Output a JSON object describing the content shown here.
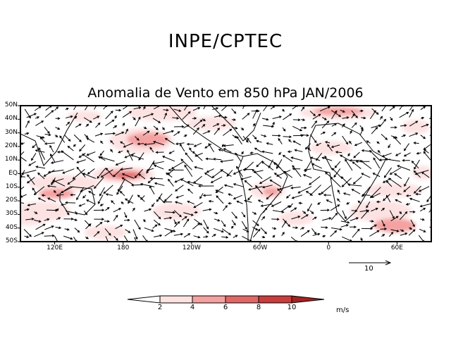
{
  "header": {
    "title": "INPE/CPTEC",
    "subtitle": "Anomalia de Vento em 850 hPa JAN/2006"
  },
  "map": {
    "lat_labels": [
      "50N",
      "40N",
      "30N",
      "20N",
      "10N",
      "EQ",
      "10S",
      "20S",
      "30S",
      "40S",
      "50S"
    ],
    "lon_labels": [
      "120E",
      "180",
      "120W",
      "60W",
      "0",
      "60E"
    ],
    "reference_vector": {
      "value": "10"
    }
  },
  "colorbar": {
    "levels": [
      "2",
      "4",
      "6",
      "8",
      "10"
    ],
    "units": "m/s",
    "colors": [
      "#ffffff",
      "#fde2e2",
      "#f4a1a1",
      "#e06767",
      "#c83d3d",
      "#a52222"
    ]
  }
}
